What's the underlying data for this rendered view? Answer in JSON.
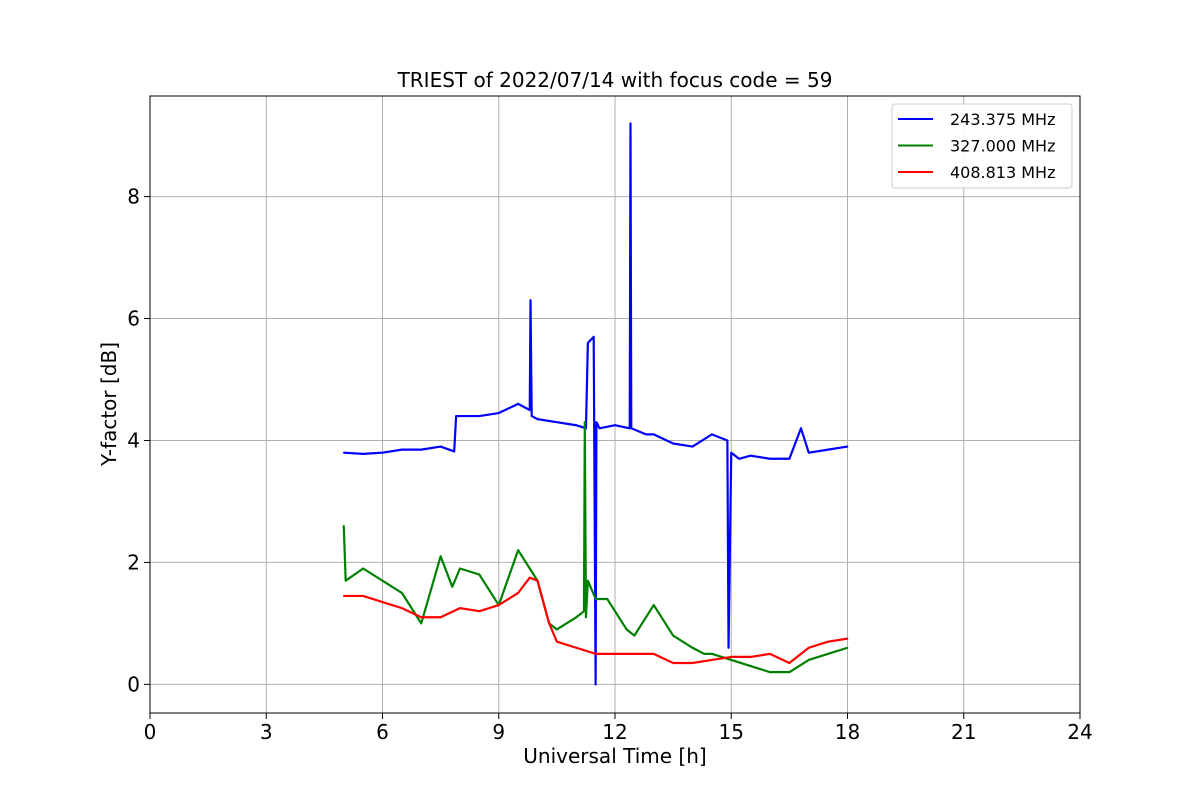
{
  "chart_data": {
    "type": "line",
    "title": "TRIEST of 2022/07/14 with focus code = 59",
    "xlabel": "Universal Time [h]",
    "ylabel": "Y-factor [dB]",
    "xlim": [
      0,
      24
    ],
    "ylim": [
      -0.47,
      9.65
    ],
    "xticks": [
      0,
      3,
      6,
      9,
      12,
      15,
      18,
      21,
      24
    ],
    "xtick_labels": [
      "0",
      "3",
      "6",
      "9",
      "12",
      "15",
      "18",
      "21",
      "24"
    ],
    "yticks": [
      0,
      2,
      4,
      6,
      8
    ],
    "ytick_labels": [
      "0",
      "2",
      "4",
      "6",
      "8"
    ],
    "grid": true,
    "legend_position": "top-right",
    "series": [
      {
        "name": "243.375 MHz",
        "color": "#0000ff",
        "x": [
          5.0,
          5.5,
          6.0,
          6.5,
          7.0,
          7.5,
          7.85,
          7.9,
          8.5,
          9.0,
          9.5,
          9.8,
          9.82,
          9.85,
          10.0,
          10.5,
          11.0,
          11.25,
          11.3,
          11.45,
          11.5,
          11.52,
          11.6,
          12.0,
          12.38,
          12.4,
          12.42,
          12.8,
          13.0,
          13.5,
          14.0,
          14.5,
          14.9,
          14.93,
          15.0,
          15.2,
          15.5,
          16.0,
          16.5,
          16.8,
          17.0,
          17.5,
          18.0
        ],
        "y": [
          3.8,
          3.78,
          3.8,
          3.85,
          3.85,
          3.9,
          3.82,
          4.4,
          4.4,
          4.45,
          4.6,
          4.5,
          6.3,
          4.4,
          4.35,
          4.3,
          4.25,
          4.2,
          5.6,
          5.7,
          0.0,
          4.3,
          4.2,
          4.25,
          4.2,
          9.2,
          4.2,
          4.1,
          4.1,
          3.95,
          3.9,
          4.1,
          4.0,
          0.6,
          3.8,
          3.7,
          3.75,
          3.7,
          3.7,
          4.2,
          3.8,
          3.85,
          3.9
        ]
      },
      {
        "name": "327.000 MHz",
        "color": "#008000",
        "x": [
          5.0,
          5.05,
          5.5,
          6.0,
          6.5,
          7.0,
          7.5,
          7.8,
          8.0,
          8.5,
          9.0,
          9.5,
          9.8,
          10.0,
          10.3,
          10.5,
          11.0,
          11.2,
          11.22,
          11.25,
          11.3,
          11.5,
          11.8,
          12.0,
          12.3,
          12.5,
          13.0,
          13.5,
          14.0,
          14.3,
          14.5,
          15.0,
          15.5,
          16.0,
          16.5,
          17.0,
          17.5,
          18.0
        ],
        "y": [
          2.6,
          1.7,
          1.9,
          1.7,
          1.5,
          1.0,
          2.1,
          1.6,
          1.9,
          1.8,
          1.3,
          2.2,
          1.9,
          1.7,
          1.0,
          0.9,
          1.1,
          1.2,
          4.3,
          1.1,
          1.7,
          1.4,
          1.4,
          1.2,
          0.9,
          0.8,
          1.3,
          0.8,
          0.6,
          0.5,
          0.5,
          0.4,
          0.3,
          0.2,
          0.2,
          0.4,
          0.5,
          0.6
        ]
      },
      {
        "name": "408.813 MHz",
        "color": "#ff0000",
        "x": [
          5.0,
          5.5,
          6.0,
          6.5,
          7.0,
          7.5,
          8.0,
          8.5,
          9.0,
          9.5,
          9.8,
          10.0,
          10.3,
          10.5,
          11.0,
          11.5,
          12.0,
          12.5,
          13.0,
          13.5,
          14.0,
          14.5,
          15.0,
          15.5,
          16.0,
          16.5,
          17.0,
          17.5,
          18.0
        ],
        "y": [
          1.45,
          1.45,
          1.35,
          1.25,
          1.1,
          1.1,
          1.25,
          1.2,
          1.3,
          1.5,
          1.75,
          1.7,
          1.0,
          0.7,
          0.6,
          0.5,
          0.5,
          0.5,
          0.5,
          0.35,
          0.35,
          0.4,
          0.45,
          0.45,
          0.5,
          0.35,
          0.6,
          0.7,
          0.75
        ]
      }
    ]
  }
}
